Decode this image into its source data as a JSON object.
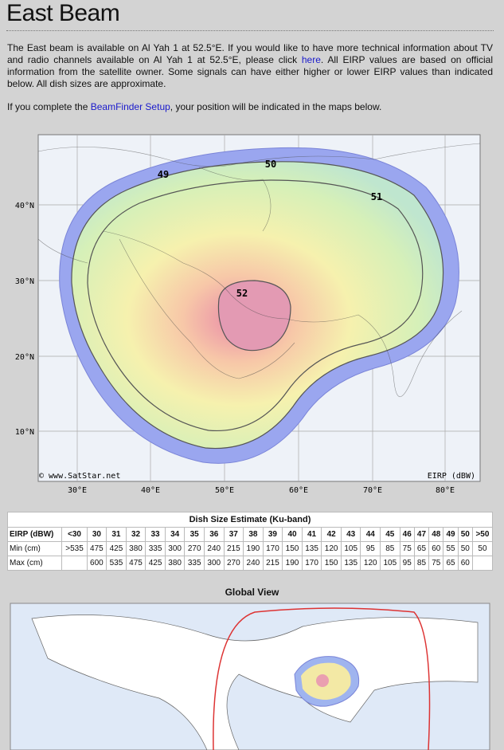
{
  "header": {
    "title": "East Beam"
  },
  "intro": {
    "paragraph1": [
      "The East beam is available on Al Yah 1 at 52.5°E. If you would like to have more technical information about TV and radio channels available on Al Yah 1 at 52.5°E, please click ",
      "here",
      ". All EIRP values are based on official information from the satellite owner. Some signals can have either higher or lower EIRP values than indicated below. All dish sizes are approximate."
    ],
    "paragraph2": [
      "If you complete the ",
      "BeamFinder Setup",
      ", your position will be indicated in the maps below."
    ]
  },
  "beam_map": {
    "contour_labels": [
      "49",
      "50",
      "51",
      "52"
    ],
    "latitude_labels": [
      "40°N",
      "30°N",
      "20°N",
      "10°N"
    ],
    "longitude_labels": [
      "30°E",
      "40°E",
      "50°E",
      "60°E",
      "70°E",
      "80°E"
    ],
    "credit": "© www.SatStar.net",
    "unit": "EIRP (dBW)"
  },
  "table": {
    "title": "Dish Size Estimate (Ku-band)",
    "rows": [
      [
        "EIRP (dBW)",
        "<30",
        "30",
        "31",
        "32",
        "33",
        "34",
        "35",
        "36",
        "37",
        "38",
        "39",
        "40",
        "41",
        "42",
        "43",
        "44",
        "45",
        "46",
        "47",
        "48",
        "49",
        "50",
        ">50"
      ],
      [
        "Min (cm)",
        ">535",
        "475",
        "425",
        "380",
        "335",
        "300",
        "270",
        "240",
        "215",
        "190",
        "170",
        "150",
        "135",
        "120",
        "105",
        "95",
        "85",
        "75",
        "65",
        "60",
        "55",
        "50",
        "50"
      ],
      [
        "Max (cm)",
        null,
        "600",
        "535",
        "475",
        "425",
        "380",
        "335",
        "300",
        "270",
        "240",
        "215",
        "190",
        "170",
        "150",
        "135",
        "120",
        "105",
        "95",
        "85",
        "75",
        "65",
        "60",
        null
      ]
    ]
  },
  "global_view": {
    "title": "Global View"
  }
}
